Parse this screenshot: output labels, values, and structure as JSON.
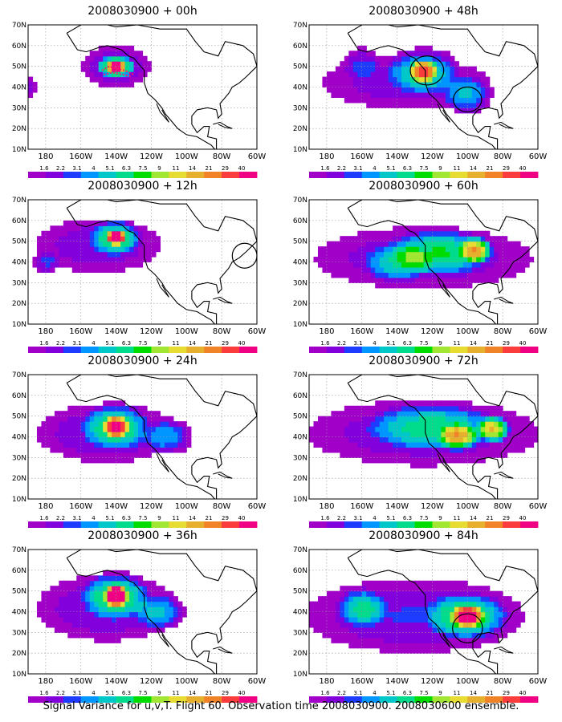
{
  "panels": [
    {
      "title": "2008030900 + 00h"
    },
    {
      "title": "2008030900 + 48h"
    },
    {
      "title": "2008030900 + 12h"
    },
    {
      "title": "2008030900 + 60h"
    },
    {
      "title": "2008030900 + 24h"
    },
    {
      "title": "2008030900 + 72h"
    },
    {
      "title": "2008030900 + 36h"
    },
    {
      "title": "2008030900 + 84h"
    }
  ],
  "caption": "Signal Variance for u,v,T. Flight 60. Observation time 2008030900. 2008030600 ensemble.",
  "chart_data": {
    "type": "heatmap",
    "lon_ticks": [
      "180",
      "160W",
      "140W",
      "120W",
      "100W",
      "80W",
      "60W"
    ],
    "lat_ticks": [
      "10N",
      "20N",
      "30N",
      "40N",
      "50N",
      "60N",
      "70N"
    ],
    "lon_range": [
      -190,
      -60
    ],
    "lat_range": [
      10,
      70
    ],
    "colorbar": {
      "labels": [
        "1.6",
        "2.2",
        "3.1",
        "4",
        "5.1",
        "6.3",
        "7.5",
        "9",
        "11",
        "14",
        "21",
        "29",
        "40"
      ],
      "colors": [
        "#a000c8",
        "#8200dc",
        "#1e3cff",
        "#0096ff",
        "#00c8c8",
        "#00dc8c",
        "#00dc00",
        "#a0e632",
        "#e6dc32",
        "#e6af2d",
        "#f08228",
        "#fa3c3c",
        "#f00082"
      ]
    },
    "fields": [
      {
        "circles": [],
        "blobs": [
          [
            -140,
            50,
            22,
            12,
            1.2
          ],
          [
            -140,
            50,
            12,
            6,
            2.5
          ],
          [
            -140,
            50,
            5,
            3,
            4.2
          ],
          [
            -190,
            40,
            6,
            5,
            1
          ]
        ]
      },
      {
        "circles": [
          [
            -123,
            48,
            9.5,
            7
          ],
          [
            -100,
            34,
            8,
            6
          ]
        ],
        "blobs": [
          [
            -135,
            42,
            55,
            14,
            1
          ],
          [
            -125,
            48,
            22,
            12,
            1.9
          ],
          [
            -125,
            48,
            9,
            6,
            3
          ],
          [
            -100,
            36,
            15,
            10,
            1.8
          ],
          [
            -160,
            52,
            12,
            8,
            1.1
          ]
        ]
      },
      {
        "circles": [
          [
            -67,
            43,
            7,
            6
          ]
        ],
        "blobs": [
          [
            -150,
            48,
            40,
            15,
            1.1
          ],
          [
            -140,
            52,
            15,
            9,
            2.3
          ],
          [
            -140,
            52,
            6,
            4,
            3.8
          ],
          [
            -180,
            40,
            8,
            6,
            1.2
          ]
        ]
      },
      {
        "circles": [],
        "blobs": [
          [
            -125,
            42,
            70,
            17,
            1.1
          ],
          [
            -115,
            45,
            30,
            12,
            2
          ],
          [
            -95,
            46,
            10,
            7,
            2.8
          ],
          [
            -140,
            40,
            20,
            10,
            1.6
          ]
        ]
      },
      {
        "circles": [],
        "blobs": [
          [
            -145,
            42,
            45,
            16,
            1.2
          ],
          [
            -140,
            45,
            20,
            12,
            2
          ],
          [
            -140,
            45,
            8,
            6,
            3.4
          ],
          [
            -110,
            40,
            15,
            9,
            1.5
          ]
        ]
      },
      {
        "circles": [],
        "blobs": [
          [
            -125,
            42,
            75,
            18,
            1.1
          ],
          [
            -120,
            45,
            40,
            12,
            1.8
          ],
          [
            -85,
            44,
            10,
            7,
            3.2
          ],
          [
            -105,
            40,
            12,
            7,
            2.5
          ]
        ]
      },
      {
        "circles": [],
        "blobs": [
          [
            -145,
            42,
            45,
            18,
            1.2
          ],
          [
            -140,
            48,
            20,
            12,
            2.2
          ],
          [
            -140,
            48,
            7,
            6,
            4.5
          ],
          [
            -115,
            40,
            15,
            9,
            1.6
          ]
        ]
      },
      {
        "circles": [
          [
            -100,
            32,
            8.5,
            7
          ]
        ],
        "blobs": [
          [
            -130,
            38,
            70,
            20,
            1.2
          ],
          [
            -100,
            38,
            25,
            12,
            2.3
          ],
          [
            -100,
            38,
            10,
            6,
            3.3
          ],
          [
            -160,
            42,
            15,
            10,
            1.8
          ]
        ]
      }
    ]
  }
}
